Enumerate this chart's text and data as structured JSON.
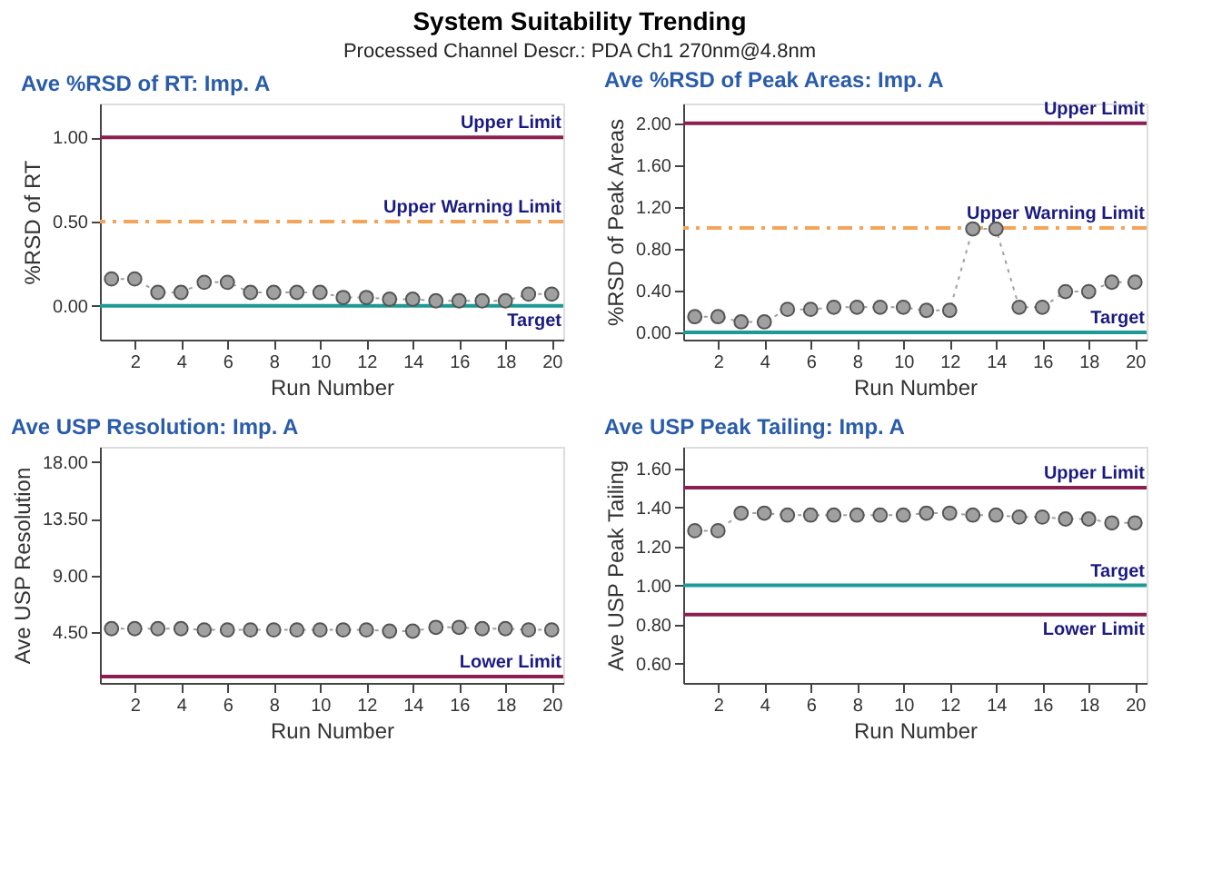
{
  "chart_data": [
    {
      "type": "other",
      "title": "System Suitability Trending",
      "subtitle": "Processed Channel Descr.:  PDA Ch1 270nm@4.8nm"
    },
    {
      "type": "line",
      "title": "Ave %RSD of RT: Imp. A",
      "xlabel": "Run Number",
      "ylabel": "%RSD of RT",
      "x": [
        1,
        2,
        3,
        4,
        5,
        6,
        7,
        8,
        9,
        10,
        11,
        12,
        13,
        14,
        15,
        16,
        17,
        18,
        19,
        20
      ],
      "xlim": [
        0.5,
        20.5
      ],
      "xticks": [
        2,
        4,
        6,
        8,
        10,
        12,
        14,
        16,
        18,
        20
      ],
      "ylim": [
        -0.2,
        1.2
      ],
      "yticks": [
        {
          "value": 0,
          "label": "0.00"
        },
        {
          "value": 0.5,
          "label": "0.50"
        },
        {
          "value": 1,
          "label": "1.00"
        }
      ],
      "marker": "circle",
      "line_style": "dotted",
      "series": [
        {
          "color": "#a0a0a0",
          "values": [
            0.16,
            0.16,
            0.08,
            0.08,
            0.14,
            0.14,
            0.08,
            0.08,
            0.08,
            0.08,
            0.05,
            0.05,
            0.04,
            0.04,
            0.03,
            0.03,
            0.03,
            0.03,
            0.07,
            0.07
          ]
        }
      ],
      "ref_lines": [
        {
          "axis": "y",
          "value": 1.0,
          "label": "Upper Limit",
          "color": "#8b1f4f",
          "line_style": "solid"
        },
        {
          "axis": "y",
          "value": 0.5,
          "label": "Upper Warning Limit",
          "color": "#f5a55a",
          "line_style": "dashed"
        },
        {
          "axis": "y",
          "value": 0.0,
          "label": "Target",
          "color": "#1e9a96",
          "line_style": "solid"
        }
      ]
    },
    {
      "type": "line",
      "title": "Ave %RSD of Peak Areas: Imp. A",
      "xlabel": "Run Number",
      "ylabel": "%RSD of Peak Areas",
      "x": [
        1,
        2,
        3,
        4,
        5,
        6,
        7,
        8,
        9,
        10,
        11,
        12,
        13,
        14,
        15,
        16,
        17,
        18,
        19,
        20
      ],
      "xlim": [
        0.5,
        20.5
      ],
      "xticks": [
        2,
        4,
        6,
        8,
        10,
        12,
        14,
        16,
        18,
        20
      ],
      "ylim": [
        -0.07,
        2.19
      ],
      "yticks": [
        {
          "value": 0,
          "label": "0.00"
        },
        {
          "value": 0.4,
          "label": "0.40"
        },
        {
          "value": 0.8,
          "label": "0.80"
        },
        {
          "value": 1.2,
          "label": "1.20"
        },
        {
          "value": 1.6,
          "label": "1.60"
        },
        {
          "value": 2.0,
          "label": "2.00"
        }
      ],
      "marker": "circle",
      "line_style": "dotted",
      "series": [
        {
          "color": "#a0a0a0",
          "values": [
            0.15,
            0.15,
            0.1,
            0.1,
            0.22,
            0.22,
            0.24,
            0.24,
            0.24,
            0.24,
            0.21,
            0.21,
            0.99,
            0.99,
            0.24,
            0.24,
            0.39,
            0.39,
            0.48,
            0.48
          ]
        }
      ],
      "ref_lines": [
        {
          "axis": "y",
          "value": 2.0,
          "label": "Upper Limit",
          "color": "#8b1f4f",
          "line_style": "solid"
        },
        {
          "axis": "y",
          "value": 1.0,
          "label": "Upper Warning Limit",
          "color": "#f5a55a",
          "line_style": "dashed"
        },
        {
          "axis": "y",
          "value": 0.0,
          "label": "Target",
          "color": "#1e9a96",
          "line_style": "solid"
        }
      ]
    },
    {
      "type": "line",
      "title": "Ave USP Resolution: Imp. A",
      "xlabel": "Run Number",
      "ylabel": "Ave USP Resolution",
      "x": [
        1,
        2,
        3,
        4,
        5,
        6,
        7,
        8,
        9,
        10,
        11,
        12,
        13,
        14,
        15,
        16,
        17,
        18,
        19,
        20
      ],
      "xlim": [
        0.5,
        20.5
      ],
      "xticks": [
        2,
        4,
        6,
        8,
        10,
        12,
        14,
        16,
        18,
        20
      ],
      "ylim": [
        0.5,
        19.2
      ],
      "yticks": [
        {
          "value": 4.5,
          "label": "4.50"
        },
        {
          "value": 9,
          "label": "9.00"
        },
        {
          "value": 13.5,
          "label": "13.50"
        },
        {
          "value": 18,
          "label": "18.00"
        }
      ],
      "marker": "circle",
      "line_style": "dotted",
      "series": [
        {
          "color": "#a0a0a0",
          "values": [
            4.8,
            4.8,
            4.8,
            4.8,
            4.7,
            4.7,
            4.7,
            4.7,
            4.7,
            4.7,
            4.7,
            4.7,
            4.6,
            4.6,
            4.9,
            4.9,
            4.8,
            4.8,
            4.7,
            4.7
          ]
        }
      ],
      "ref_lines": [
        {
          "axis": "y",
          "value": 1.0,
          "label": "Lower Limit",
          "color": "#8b1f4f",
          "line_style": "solid"
        }
      ]
    },
    {
      "type": "line",
      "title": "Ave USP Peak Tailing: Imp. A",
      "xlabel": "Run Number",
      "ylabel": "Ave USP Peak Tailing",
      "x": [
        1,
        2,
        3,
        4,
        5,
        6,
        7,
        8,
        9,
        10,
        11,
        12,
        13,
        14,
        15,
        16,
        17,
        18,
        19,
        20
      ],
      "xlim": [
        0.5,
        20.5
      ],
      "xticks": [
        2,
        4,
        6,
        8,
        10,
        12,
        14,
        16,
        18,
        20
      ],
      "ylim": [
        0.5,
        1.71
      ],
      "yticks": [
        {
          "value": 0.6,
          "label": "0.60"
        },
        {
          "value": 0.8,
          "label": "0.80"
        },
        {
          "value": 1.0,
          "label": "1.00"
        },
        {
          "value": 1.2,
          "label": "1.20"
        },
        {
          "value": 1.4,
          "label": "1.40"
        },
        {
          "value": 1.6,
          "label": "1.60"
        }
      ],
      "marker": "circle",
      "line_style": "dotted",
      "series": [
        {
          "color": "#a0a0a0",
          "values": [
            1.28,
            1.28,
            1.37,
            1.37,
            1.36,
            1.36,
            1.36,
            1.36,
            1.36,
            1.36,
            1.37,
            1.37,
            1.36,
            1.36,
            1.35,
            1.35,
            1.34,
            1.34,
            1.32,
            1.32
          ]
        }
      ],
      "ref_lines": [
        {
          "axis": "y",
          "value": 1.5,
          "label": "Upper Limit",
          "color": "#8b1f4f",
          "line_style": "solid"
        },
        {
          "axis": "y",
          "value": 1.0,
          "label": "Target",
          "color": "#1e9a96",
          "line_style": "solid"
        },
        {
          "axis": "y",
          "value": 0.85,
          "label": "Lower Limit",
          "color": "#8b1f4f",
          "line_style": "solid"
        }
      ]
    }
  ]
}
